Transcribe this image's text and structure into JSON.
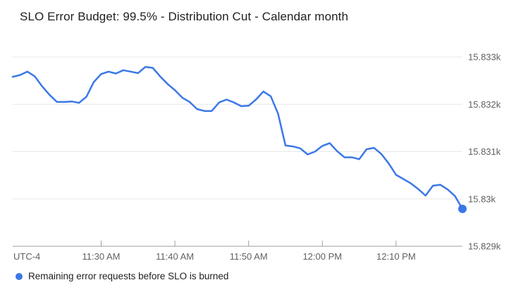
{
  "title": "SLO Error Budget: 99.5% - Distribution Cut - Calendar month",
  "legend": {
    "label": "Remaining error requests before SLO is burned"
  },
  "colors": {
    "line": "#3b78e7",
    "marker": "#3b78e7",
    "grid": "#e7e7e7",
    "axis": "#9e9e9e",
    "axis_label": "#616161",
    "title_text": "#202124",
    "legend_text": "#202124",
    "background": "#ffffff"
  },
  "chart_data": {
    "type": "line",
    "title": "SLO Error Budget: 99.5% - Distribution Cut - Calendar month",
    "xlabel": "",
    "ylabel": "",
    "grid": true,
    "legend_position": "bottom-left",
    "x_axis": {
      "timezone_label": "UTC-4",
      "ticks": [
        "11:30 AM",
        "11:40 AM",
        "11:50 AM",
        "12:00 PM",
        "12:10 PM"
      ],
      "start": "11:18 AM",
      "end": "12:19 PM"
    },
    "y_axis": {
      "side": "right",
      "range": [
        15829,
        15833
      ],
      "tick_values": [
        15833,
        15832,
        15831,
        15830,
        15829
      ],
      "tick_labels": [
        "15.833k",
        "15.832k",
        "15.831k",
        "15.83k",
        "15.829k"
      ]
    },
    "series": [
      {
        "name": "Remaining error requests before SLO is burned",
        "color": "#3b78e7",
        "end_marker": true,
        "points": [
          [
            "11:18 AM",
            15832.58
          ],
          [
            "11:19 AM",
            15832.62
          ],
          [
            "11:20 AM",
            15832.69
          ],
          [
            "11:21 AM",
            15832.59
          ],
          [
            "11:22 AM",
            15832.38
          ],
          [
            "11:23 AM",
            15832.2
          ],
          [
            "11:24 AM",
            15832.05
          ],
          [
            "11:25 AM",
            15832.05
          ],
          [
            "11:26 AM",
            15832.06
          ],
          [
            "11:27 AM",
            15832.03
          ],
          [
            "11:28 AM",
            15832.16
          ],
          [
            "11:29 AM",
            15832.47
          ],
          [
            "11:30 AM",
            15832.64
          ],
          [
            "11:31 AM",
            15832.69
          ],
          [
            "11:32 AM",
            15832.65
          ],
          [
            "11:33 AM",
            15832.72
          ],
          [
            "11:34 AM",
            15832.69
          ],
          [
            "11:35 AM",
            15832.66
          ],
          [
            "11:36 AM",
            15832.79
          ],
          [
            "11:37 AM",
            15832.77
          ],
          [
            "11:38 AM",
            15832.59
          ],
          [
            "11:39 AM",
            15832.43
          ],
          [
            "11:40 AM",
            15832.3
          ],
          [
            "11:41 AM",
            15832.14
          ],
          [
            "11:42 AM",
            15832.05
          ],
          [
            "11:43 AM",
            15831.9
          ],
          [
            "11:44 AM",
            15831.86
          ],
          [
            "11:45 AM",
            15831.86
          ],
          [
            "11:46 AM",
            15832.04
          ],
          [
            "11:47 AM",
            15832.1
          ],
          [
            "11:48 AM",
            15832.04
          ],
          [
            "11:49 AM",
            15831.96
          ],
          [
            "11:50 AM",
            15831.97
          ],
          [
            "11:51 AM",
            15832.1
          ],
          [
            "11:52 AM",
            15832.27
          ],
          [
            "11:53 AM",
            15832.17
          ],
          [
            "11:54 AM",
            15831.8
          ],
          [
            "11:55 AM",
            15831.13
          ],
          [
            "11:56 AM",
            15831.11
          ],
          [
            "11:57 AM",
            15831.07
          ],
          [
            "11:58 AM",
            15830.94
          ],
          [
            "11:59 AM",
            15831.0
          ],
          [
            "12:00 PM",
            15831.12
          ],
          [
            "12:01 PM",
            15831.18
          ],
          [
            "12:02 PM",
            15831.01
          ],
          [
            "12:03 PM",
            15830.88
          ],
          [
            "12:04 PM",
            15830.88
          ],
          [
            "12:05 PM",
            15830.84
          ],
          [
            "12:06 PM",
            15831.05
          ],
          [
            "12:07 PM",
            15831.08
          ],
          [
            "12:08 PM",
            15830.95
          ],
          [
            "12:09 PM",
            15830.75
          ],
          [
            "12:10 PM",
            15830.51
          ],
          [
            "12:11 PM",
            15830.42
          ],
          [
            "12:12 PM",
            15830.33
          ],
          [
            "12:13 PM",
            15830.21
          ],
          [
            "12:14 PM",
            15830.07
          ],
          [
            "12:15 PM",
            15830.28
          ],
          [
            "12:16 PM",
            15830.3
          ],
          [
            "12:17 PM",
            15830.2
          ],
          [
            "12:18 PM",
            15830.06
          ],
          [
            "12:19 PM",
            15829.79
          ]
        ]
      }
    ]
  }
}
